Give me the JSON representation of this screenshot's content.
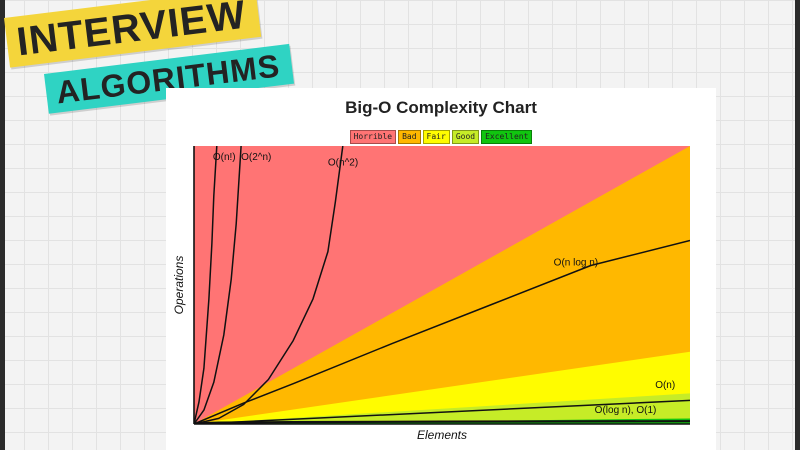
{
  "banner": {
    "line1": "INTERVIEW",
    "line2": "ALGORITHMS",
    "line1_color": "#f4d53b",
    "line2_color": "#2fd3c3"
  },
  "chart_data": {
    "type": "area",
    "title": "Big-O Complexity Chart",
    "xlabel": "Elements",
    "ylabel": "Operations",
    "xlim": [
      0,
      100
    ],
    "ylim": [
      0,
      100
    ],
    "legend": [
      {
        "label": "Horrible",
        "color": "#ff7474"
      },
      {
        "label": "Bad",
        "color": "#ffb800"
      },
      {
        "label": "Fair",
        "color": "#fffc00"
      },
      {
        "label": "Good",
        "color": "#c6ec27"
      },
      {
        "label": "Excellent",
        "color": "#10c50f"
      }
    ],
    "legend_position": "top-center",
    "grid": false,
    "regions": [
      {
        "name": "Horrible",
        "color": "#ff7474",
        "x": [
          0,
          100
        ],
        "y_upper": [
          100,
          100
        ]
      },
      {
        "name": "Bad",
        "color": "#ffb800",
        "x": [
          0,
          100
        ],
        "y_upper": [
          0,
          100
        ]
      },
      {
        "name": "Fair",
        "color": "#fffc00",
        "x": [
          0,
          100
        ],
        "y_upper": [
          0,
          26
        ]
      },
      {
        "name": "Good",
        "color": "#c6ec27",
        "x": [
          0,
          100
        ],
        "y_upper": [
          0,
          11
        ]
      },
      {
        "name": "Excellent",
        "color": "#10c50f",
        "x": [
          0,
          100
        ],
        "y_upper": [
          0,
          2
        ]
      }
    ],
    "curves": [
      {
        "label": "O(n!)",
        "x": [
          0,
          1,
          2,
          3,
          3.6,
          4,
          4.6
        ],
        "y": [
          0,
          8,
          20,
          45,
          65,
          82,
          100
        ]
      },
      {
        "label": "O(2^n)",
        "x": [
          0,
          2,
          4,
          6,
          7.5,
          8.5,
          9.5
        ],
        "y": [
          0,
          5,
          15,
          32,
          52,
          72,
          100
        ]
      },
      {
        "label": "O(n^2)",
        "x": [
          0,
          5,
          10,
          15,
          20,
          24,
          27,
          28.5,
          30
        ],
        "y": [
          0,
          2,
          7,
          16,
          30,
          45,
          62,
          80,
          100
        ]
      },
      {
        "label": "O(n log n)",
        "x": [
          0,
          10,
          20,
          40,
          60,
          80,
          100
        ],
        "y": [
          0,
          7.5,
          14.5,
          29,
          43,
          57,
          66
        ]
      },
      {
        "label": "O(n)",
        "x": [
          0,
          100
        ],
        "y": [
          0,
          8.5
        ]
      },
      {
        "label": "O(log n), O(1)",
        "x": [
          0,
          1,
          5,
          20,
          50,
          100
        ],
        "y": [
          0,
          0.3,
          0.5,
          0.7,
          0.85,
          1
        ]
      }
    ],
    "curve_labels": [
      {
        "text": "O(n!)",
        "x": 3.8,
        "y": 95
      },
      {
        "text": "O(2^n)",
        "x": 9.5,
        "y": 95
      },
      {
        "text": "O(n^2)",
        "x": 27,
        "y": 93
      },
      {
        "text": "O(n log n)",
        "x": 77,
        "y": 57
      },
      {
        "text": "O(n)",
        "x": 95,
        "y": 13
      },
      {
        "text": "O(log n), O(1)",
        "x": 87,
        "y": 4
      }
    ]
  }
}
